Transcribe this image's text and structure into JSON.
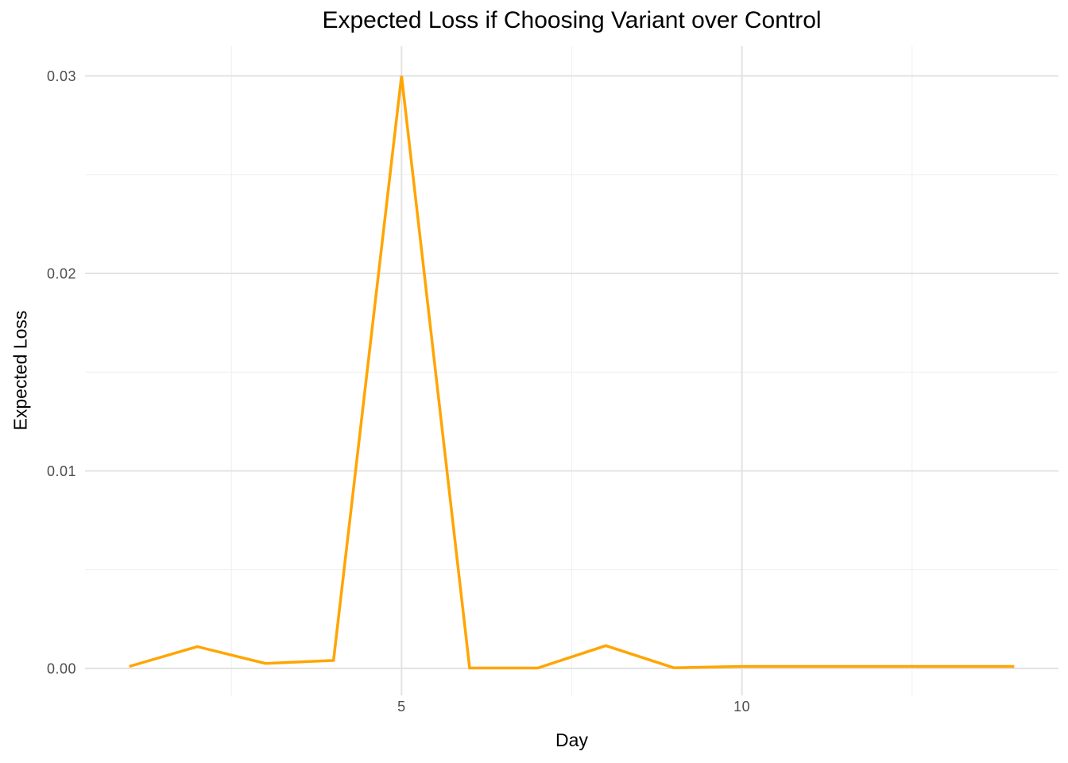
{
  "chart_data": {
    "type": "line",
    "title": "Expected Loss if Choosing Variant over Control",
    "xlabel": "Day",
    "ylabel": "Expected Loss",
    "x": [
      1,
      2,
      3,
      4,
      5,
      6,
      7,
      8,
      9,
      10,
      11,
      12,
      13,
      14
    ],
    "series": [
      {
        "name": "expected-loss",
        "values": [
          0.0001,
          0.0011,
          0.00025,
          0.0004,
          0.03,
          2e-05,
          2e-05,
          0.00115,
          3e-05,
          0.0001,
          0.0001,
          0.0001,
          0.0001,
          0.0001
        ]
      }
    ],
    "xlim": [
      0.35,
      14.65
    ],
    "ylim": [
      -0.00137,
      0.03151
    ],
    "x_ticks": {
      "values": [
        5,
        10
      ],
      "labels": [
        "5",
        "10"
      ]
    },
    "x_minor_ticks": [
      2.5,
      7.5,
      12.5
    ],
    "y_ticks": {
      "values": [
        0,
        0.01,
        0.02,
        0.03
      ],
      "labels": [
        "0.00",
        "0.01",
        "0.02",
        "0.03"
      ]
    },
    "y_minor_ticks": [
      0.005,
      0.015,
      0.025
    ],
    "grid": true,
    "legend_position": "none",
    "colors": {
      "line": "#FFA500",
      "background": "#FFFFFF",
      "major_grid": "#E3E3E3",
      "minor_grid": "#F0F0F0",
      "tick_label": "#4D4D4D",
      "text": "#000000"
    }
  }
}
